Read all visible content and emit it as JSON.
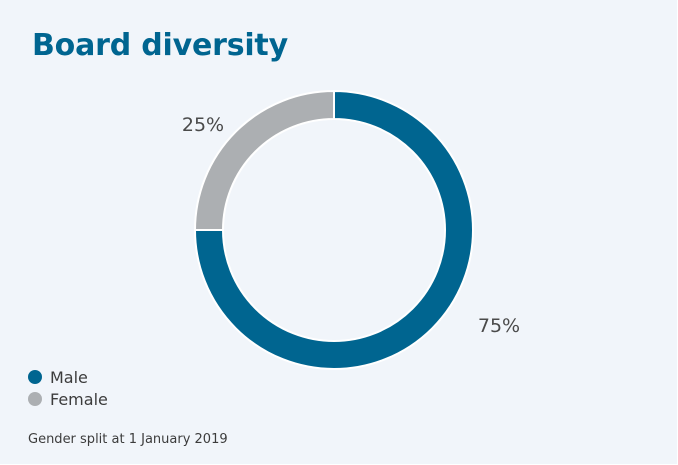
{
  "chart_data": {
    "type": "pie",
    "title": "Board diversity",
    "donut": true,
    "slices": [
      {
        "name": "Male",
        "value": 75,
        "label": "75%",
        "color": "#006590"
      },
      {
        "name": "Female",
        "value": 25,
        "label": "25%",
        "color": "#acafb2"
      }
    ],
    "legend_placement": "bottom-left",
    "footnote": "Gender split at 1 January 2019"
  }
}
